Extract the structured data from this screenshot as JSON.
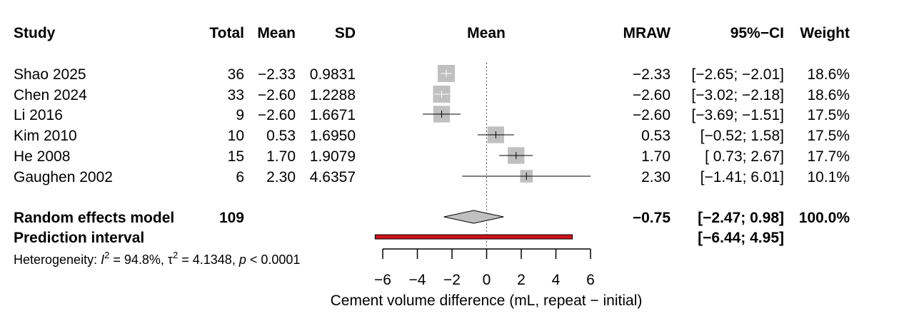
{
  "chart_data": {
    "type": "forest",
    "headers": {
      "study": "Study",
      "total": "Total",
      "mean": "Mean",
      "sd": "SD",
      "plot": "Mean",
      "effect": "MRAW",
      "ci": "95%−CI",
      "weight": "Weight"
    },
    "studies": [
      {
        "name": "Shao 2025",
        "total": "36",
        "mean": "−2.33",
        "sd": "0.9831",
        "effect": "−2.33",
        "ci": "[−2.65; −2.01]",
        "weight": "18.6%",
        "est": -2.33,
        "lo": -2.65,
        "hi": -2.01,
        "w": 18.6
      },
      {
        "name": "Chen 2024",
        "total": "33",
        "mean": "−2.60",
        "sd": "1.2288",
        "effect": "−2.60",
        "ci": "[−3.02; −2.18]",
        "weight": "18.6%",
        "est": -2.6,
        "lo": -3.02,
        "hi": -2.18,
        "w": 18.6
      },
      {
        "name": "Li 2016",
        "total": "9",
        "mean": "−2.60",
        "sd": "1.6671",
        "effect": "−2.60",
        "ci": "[−3.69; −1.51]",
        "weight": "17.5%",
        "est": -2.6,
        "lo": -3.69,
        "hi": -1.51,
        "w": 17.5
      },
      {
        "name": "Kim 2010",
        "total": "10",
        "mean": "0.53",
        "sd": "1.6950",
        "effect": "0.53",
        "ci": "[−0.52;  1.58]",
        "weight": "17.5%",
        "est": 0.53,
        "lo": -0.52,
        "hi": 1.58,
        "w": 17.5
      },
      {
        "name": "He 2008",
        "total": "15",
        "mean": "1.70",
        "sd": "1.9079",
        "effect": "1.70",
        "ci": "[ 0.73;  2.67]",
        "weight": "17.7%",
        "est": 1.7,
        "lo": 0.73,
        "hi": 2.67,
        "w": 17.7
      },
      {
        "name": "Gaughen 2002",
        "total": "6",
        "mean": "2.30",
        "sd": "4.6357",
        "effect": "2.30",
        "ci": "[−1.41;  6.01]",
        "weight": "10.1%",
        "est": 2.3,
        "lo": -1.41,
        "hi": 6.01,
        "w": 10.1
      }
    ],
    "random_effects": {
      "label": "Random effects model",
      "total": "109",
      "effect": "−0.75",
      "ci": "[−2.47;  0.98]",
      "weight": "100.0%",
      "est": -0.75,
      "lo": -2.47,
      "hi": 0.98
    },
    "prediction_interval": {
      "label": "Prediction interval",
      "ci": "[−6.44;  4.95]",
      "lo": -6.44,
      "hi": 4.95
    },
    "heterogeneity": {
      "prefix": "Heterogeneity: ",
      "i2_symbol": "I",
      "i2_value": " = 94.8%, ",
      "tau2_symbol": "τ",
      "tau2_value": " = 4.1348, ",
      "p_symbol": "p",
      "p_value": " < 0.0001",
      "exponent": "2"
    },
    "x_ticks": [
      -6,
      -4,
      -2,
      0,
      2,
      4,
      6
    ],
    "x_tick_labels": [
      "−6",
      "−4",
      "−2",
      "0",
      "2",
      "4",
      "6"
    ],
    "xlim": [
      -6,
      6
    ],
    "xlabel": "Cement volume difference (mL, repeat − initial)",
    "reference_line": 0,
    "colors": {
      "square": "#c0c0c0",
      "diamond": "#c0c0c0",
      "prediction": "#d0121b",
      "line": "#000000",
      "reference": "#555555"
    }
  }
}
